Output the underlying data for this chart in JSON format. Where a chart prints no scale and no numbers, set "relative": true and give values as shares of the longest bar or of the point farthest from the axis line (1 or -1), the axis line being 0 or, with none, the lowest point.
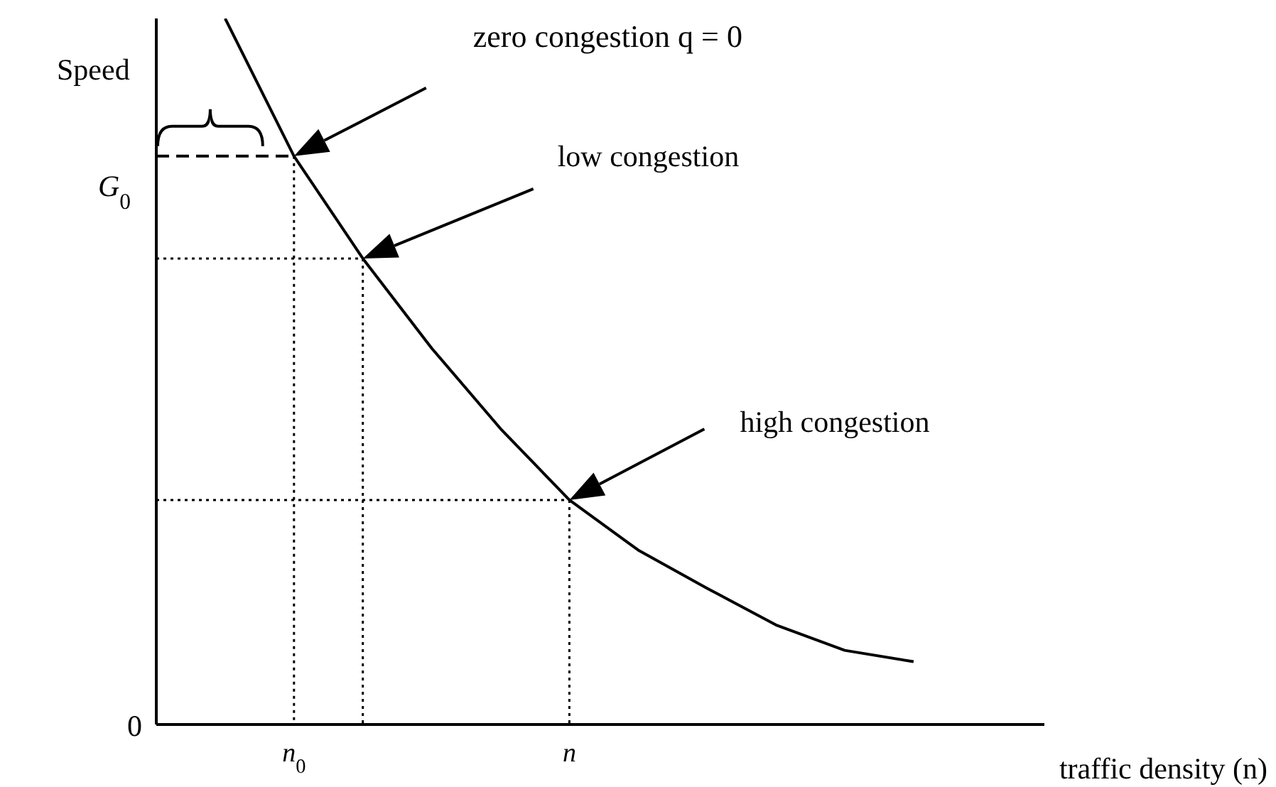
{
  "chart_data": {
    "type": "line",
    "relative": true,
    "ylabel": "Speed",
    "xlabel": "traffic density (n)",
    "categories": [
      null,
      "n$_{0}$",
      null,
      null,
      null,
      "n",
      null,
      null,
      null,
      null,
      null
    ],
    "series": [
      {
        "color": "#000000",
        "values": [
          1,
          0.805,
          0.66,
          0.533,
          0.419,
          0.318,
          0.247,
          0.193,
          0.141,
          0.105,
          0.089
        ]
      }
    ],
    "marker": "none",
    "ref_lines": [
      {
        "axis": "y",
        "value": 0.805,
        "label": "G$_{0}$",
        "line_style": "dashed"
      },
      {
        "axis": "y",
        "value": 0.66,
        "line_style": "dotted"
      },
      {
        "axis": "y",
        "value": 0.318,
        "line_style": "dotted"
      }
    ],
    "annotations": [
      "zero congestion q = 0",
      "low congestion",
      "high congestion",
      "0"
    ]
  }
}
